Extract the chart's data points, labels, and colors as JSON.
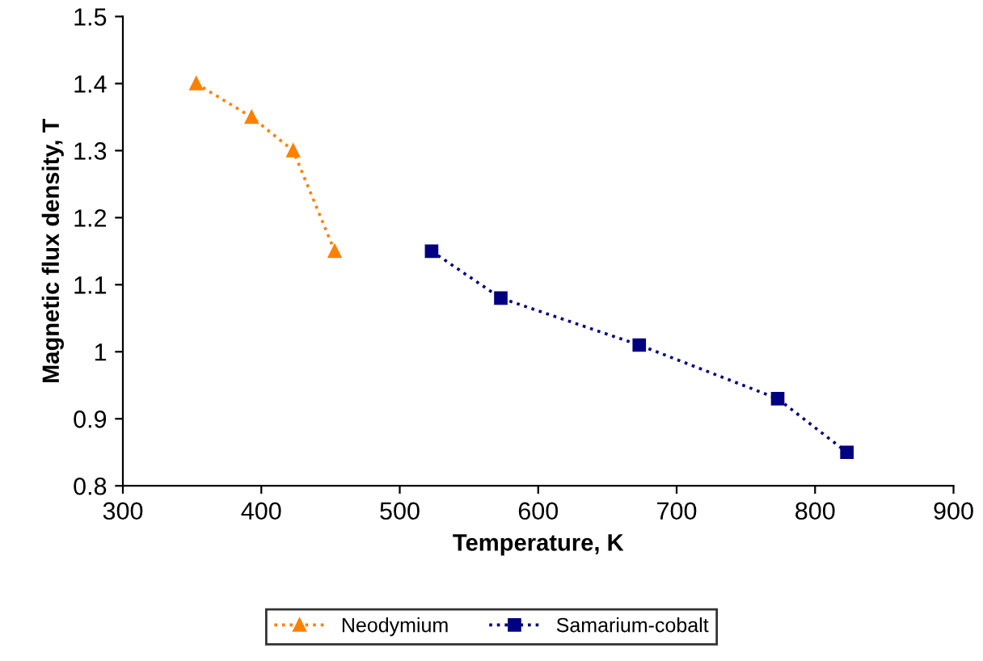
{
  "chart_data": {
    "type": "line",
    "xlabel": "Temperature, K",
    "ylabel": "Magnetic flux density, T",
    "xlim": [
      300,
      900
    ],
    "xticks": [
      300,
      400,
      500,
      600,
      700,
      800,
      900
    ],
    "ylim": [
      0.8,
      1.5
    ],
    "yticks": [
      0.8,
      0.9,
      1,
      1.1,
      1.2,
      1.3,
      1.4,
      1.5
    ],
    "grid": false,
    "legend": "bottom",
    "line_style": "dotted",
    "series": [
      {
        "name": "Neodymium",
        "color": "#ff8000",
        "marker": "triangle",
        "x": [
          353,
          393,
          423,
          453
        ],
        "values": [
          1.4,
          1.35,
          1.3,
          1.15
        ]
      },
      {
        "name": "Samarium-cobalt",
        "color": "#000080",
        "marker": "square",
        "x": [
          523,
          573,
          673,
          773,
          823
        ],
        "values": [
          1.15,
          1.08,
          1.01,
          0.93,
          0.85
        ]
      }
    ]
  }
}
